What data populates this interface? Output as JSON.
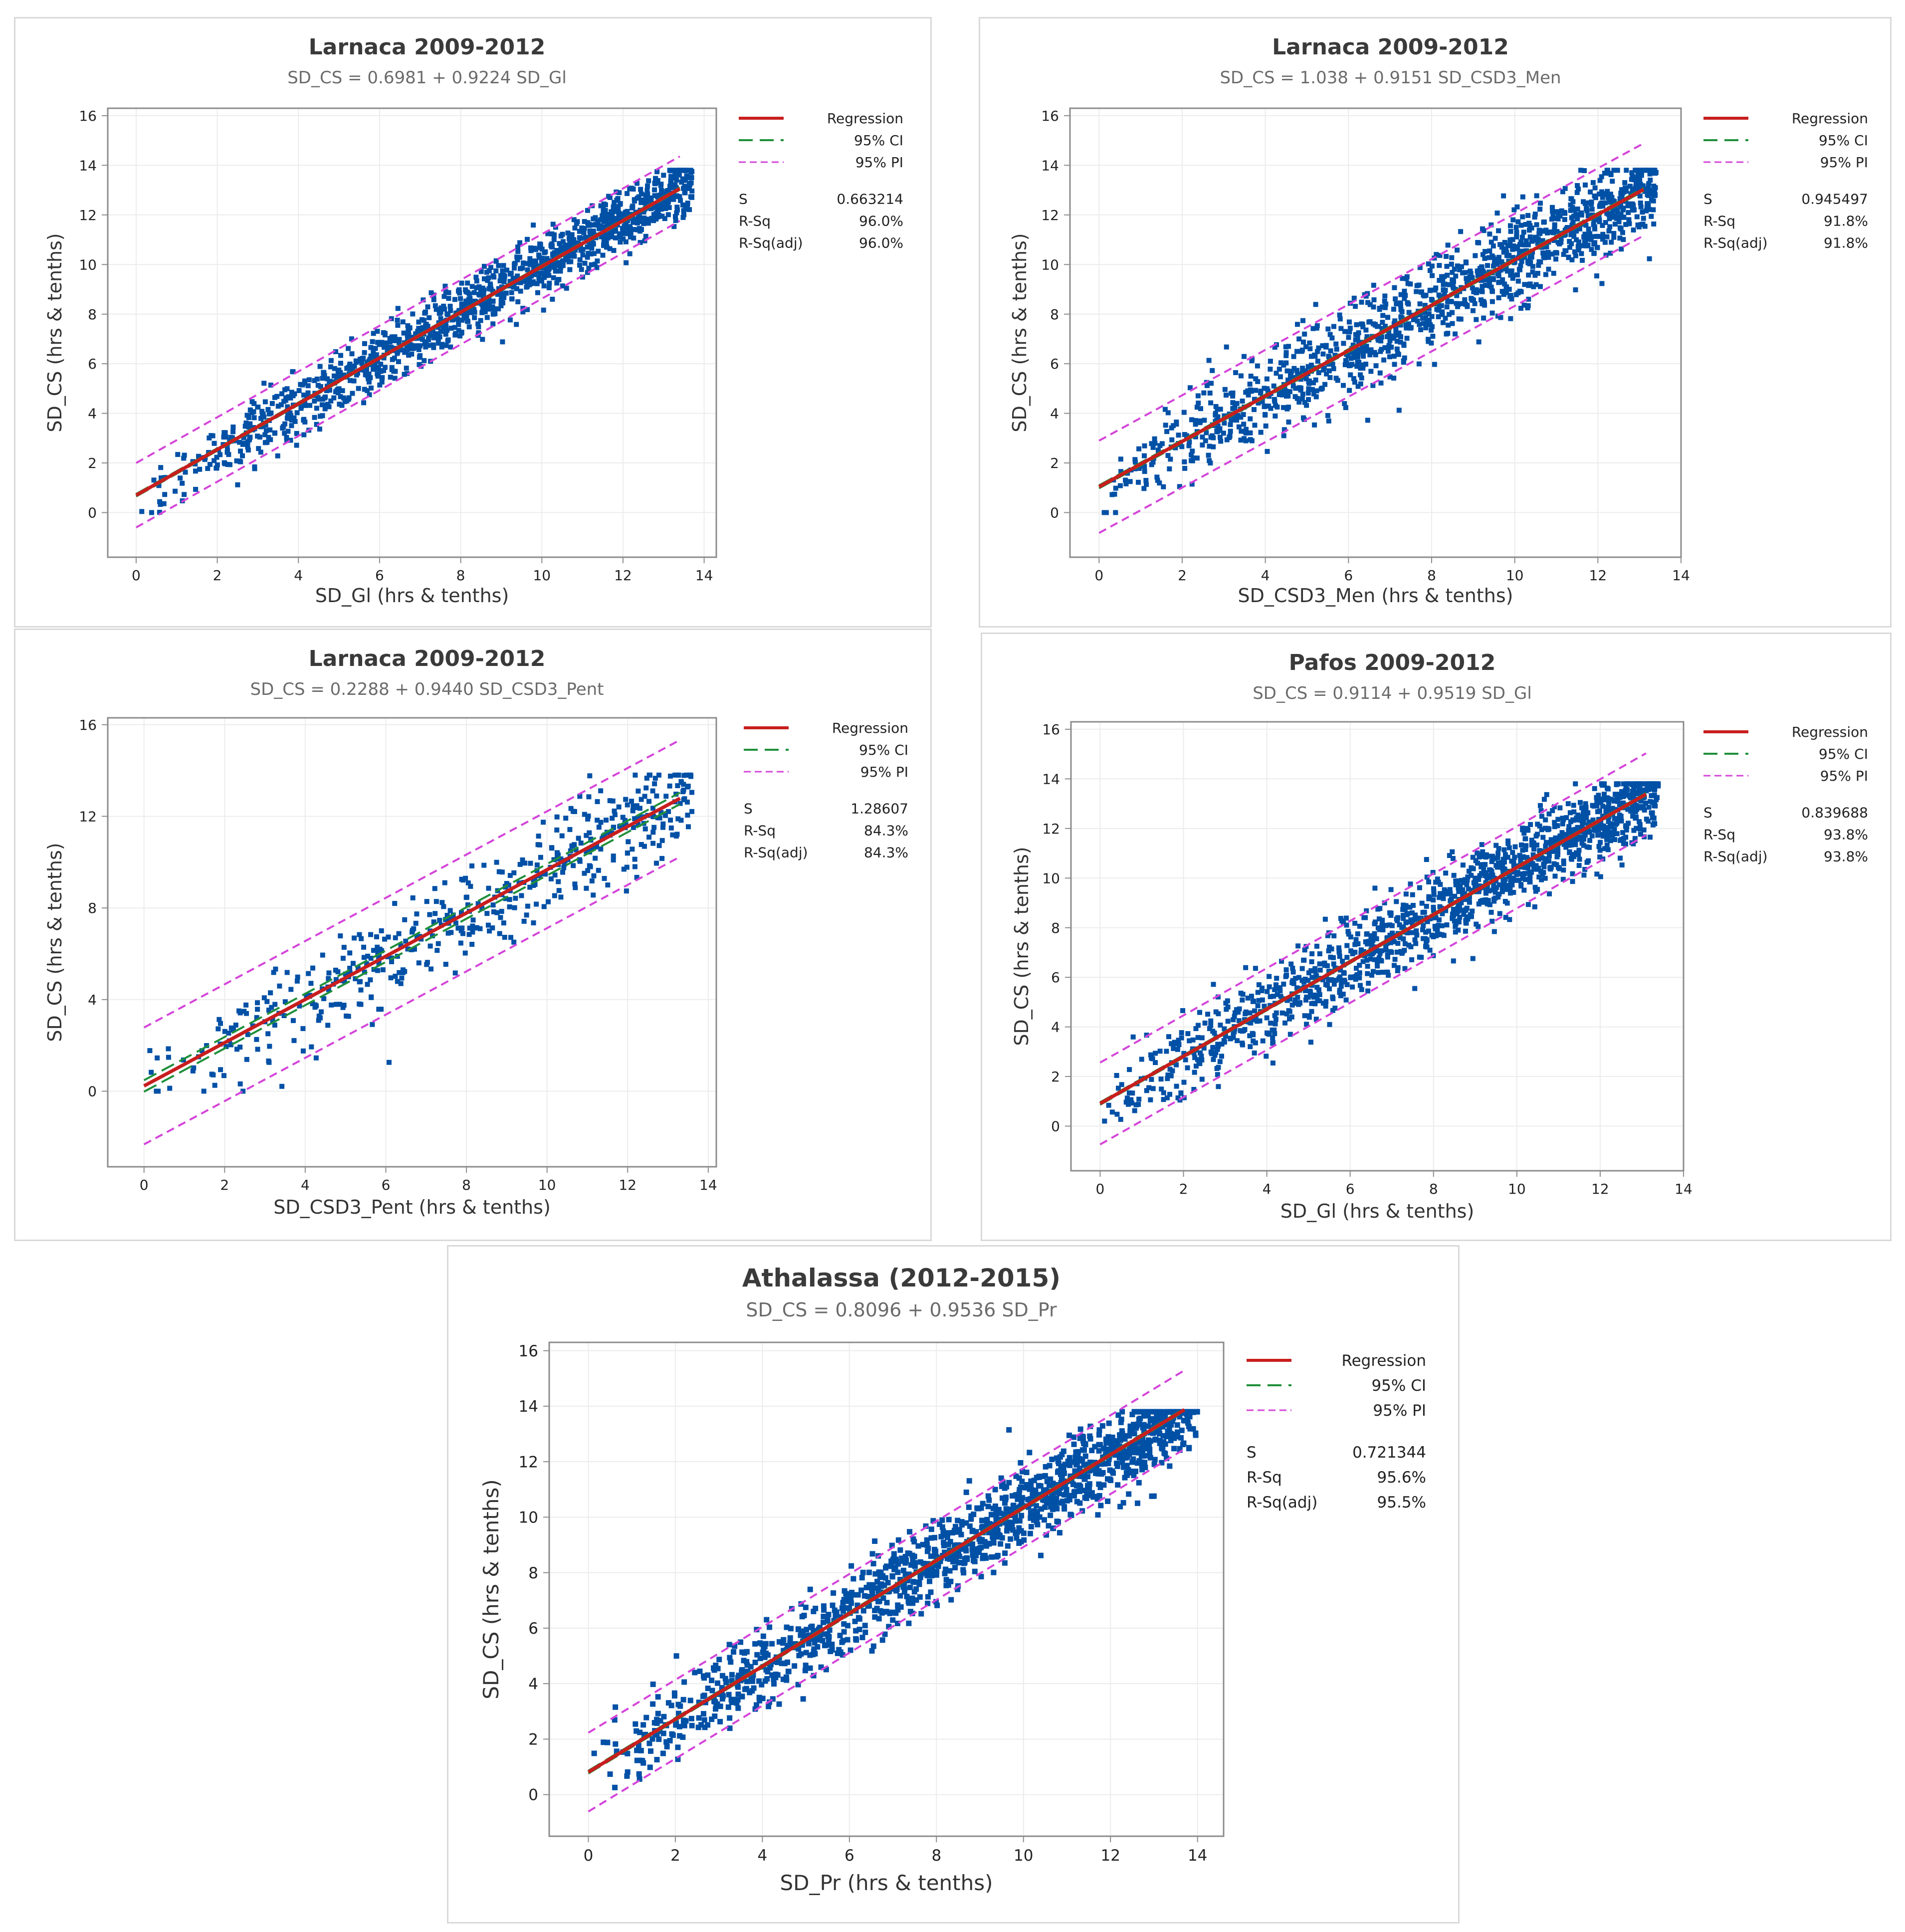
{
  "colors": {
    "points": "#0050a6",
    "regression": "#c81e1e",
    "ci": "#1f8f3a",
    "pi": "#d445d9",
    "grid": "#ececec",
    "frame": "#8c8c8c"
  },
  "legend": {
    "regression": "Regression",
    "ci": "95% CI",
    "pi": "95% PI",
    "s_label": "S",
    "rsq_label": "R-Sq",
    "rsqadj_label": "R-Sq(adj)"
  },
  "chart_data": [
    {
      "type": "scatter",
      "title": "Larnaca 2009-2012",
      "subtitle": "SD_CS = 0.6981 + 0.9224 SD_Gl",
      "xlabel": "SD_Gl (hrs & tenths)",
      "ylabel": "SD_CS (hrs & tenths)",
      "xticks": [
        "0",
        "2",
        "4",
        "6",
        "8",
        "10",
        "12",
        "14"
      ],
      "yticks": [
        "0",
        "2",
        "4",
        "6",
        "8",
        "10",
        "12",
        "14",
        "16"
      ],
      "xlim": [
        -0.7,
        14.3
      ],
      "ylim": [
        -1.8,
        16.3
      ],
      "intercept": 0.6981,
      "slope": 0.9224,
      "ci_halfwidth": 0.05,
      "pi_halfwidth": 1.3,
      "point_scatter": 0.6,
      "point_count": 1300,
      "stats": {
        "S": "0.663214",
        "R-Sq": "96.0%",
        "R-Sq(adj)": "96.0%"
      }
    },
    {
      "type": "scatter",
      "title": "Larnaca 2009-2012",
      "subtitle": "SD_CS = 1.038 + 0.9151 SD_CSD3_Men",
      "xlabel": "SD_CSD3_Men (hrs & tenths)",
      "ylabel": "SD_CS (hrs & tenths)",
      "xticks": [
        "0",
        "2",
        "4",
        "6",
        "8",
        "10",
        "12",
        "14"
      ],
      "yticks": [
        "0",
        "2",
        "4",
        "6",
        "8",
        "10",
        "12",
        "14",
        "16"
      ],
      "xlim": [
        -0.7,
        14.0
      ],
      "ylim": [
        -1.8,
        16.3
      ],
      "intercept": 1.038,
      "slope": 0.9151,
      "ci_halfwidth": 0.06,
      "pi_halfwidth": 1.86,
      "point_scatter": 0.9,
      "point_count": 1300,
      "stats": {
        "S": "0.945497",
        "R-Sq": "91.8%",
        "R-Sq(adj)": "91.8%"
      }
    },
    {
      "type": "scatter",
      "title": "Larnaca 2009-2012",
      "subtitle": "SD_CS = 0.2288 + 0.9440 SD_CSD3_Pent",
      "xlabel": "SD_CSD3_Pent (hrs & tenths)",
      "ylabel": "SD_CS (hrs & tenths)",
      "xticks": [
        "0",
        "2",
        "4",
        "6",
        "8",
        "10",
        "12",
        "14"
      ],
      "yticks": [
        "0",
        "4",
        "8",
        "12",
        "16"
      ],
      "xlim": [
        -0.9,
        14.2
      ],
      "ylim": [
        -3.3,
        16.3
      ],
      "intercept": 0.2288,
      "slope": 0.944,
      "ci_halfwidth": 0.25,
      "pi_halfwidth": 2.55,
      "point_scatter": 1.1,
      "point_count": 520,
      "stats": {
        "S": "1.28607",
        "R-Sq": "84.3%",
        "R-Sq(adj)": "84.3%"
      }
    },
    {
      "type": "scatter",
      "title": "Pafos 2009-2012",
      "subtitle": "SD_CS = 0.9114 + 0.9519 SD_Gl",
      "xlabel": "SD_Gl (hrs & tenths)",
      "ylabel": "SD_CS (hrs & tenths)",
      "xticks": [
        "0",
        "2",
        "4",
        "6",
        "8",
        "10",
        "12",
        "14"
      ],
      "yticks": [
        "0",
        "2",
        "4",
        "6",
        "8",
        "10",
        "12",
        "14",
        "16"
      ],
      "xlim": [
        -0.7,
        14.0
      ],
      "ylim": [
        -1.8,
        16.3
      ],
      "intercept": 0.9114,
      "slope": 0.9519,
      "ci_halfwidth": 0.05,
      "pi_halfwidth": 1.65,
      "point_scatter": 0.8,
      "point_count": 1400,
      "stats": {
        "S": "0.839688",
        "R-Sq": "93.8%",
        "R-Sq(adj)": "93.8%"
      }
    },
    {
      "type": "scatter",
      "title": "Athalassa (2012-2015)",
      "subtitle": "SD_CS = 0.8096 + 0.9536 SD_Pr",
      "xlabel": "SD_Pr (hrs & tenths)",
      "ylabel": "SD_CS (hrs & tenths)",
      "xticks": [
        "0",
        "2",
        "4",
        "6",
        "8",
        "10",
        "12",
        "14"
      ],
      "yticks": [
        "0",
        "2",
        "4",
        "6",
        "8",
        "10",
        "12",
        "14",
        "16"
      ],
      "xlim": [
        -0.9,
        14.6
      ],
      "ylim": [
        -1.5,
        16.3
      ],
      "intercept": 0.8096,
      "slope": 0.9536,
      "ci_halfwidth": 0.05,
      "pi_halfwidth": 1.42,
      "point_scatter": 0.7,
      "point_count": 1400,
      "stats": {
        "S": "0.721344",
        "R-Sq": "95.6%",
        "R-Sq(adj)": "95.5%"
      }
    }
  ]
}
